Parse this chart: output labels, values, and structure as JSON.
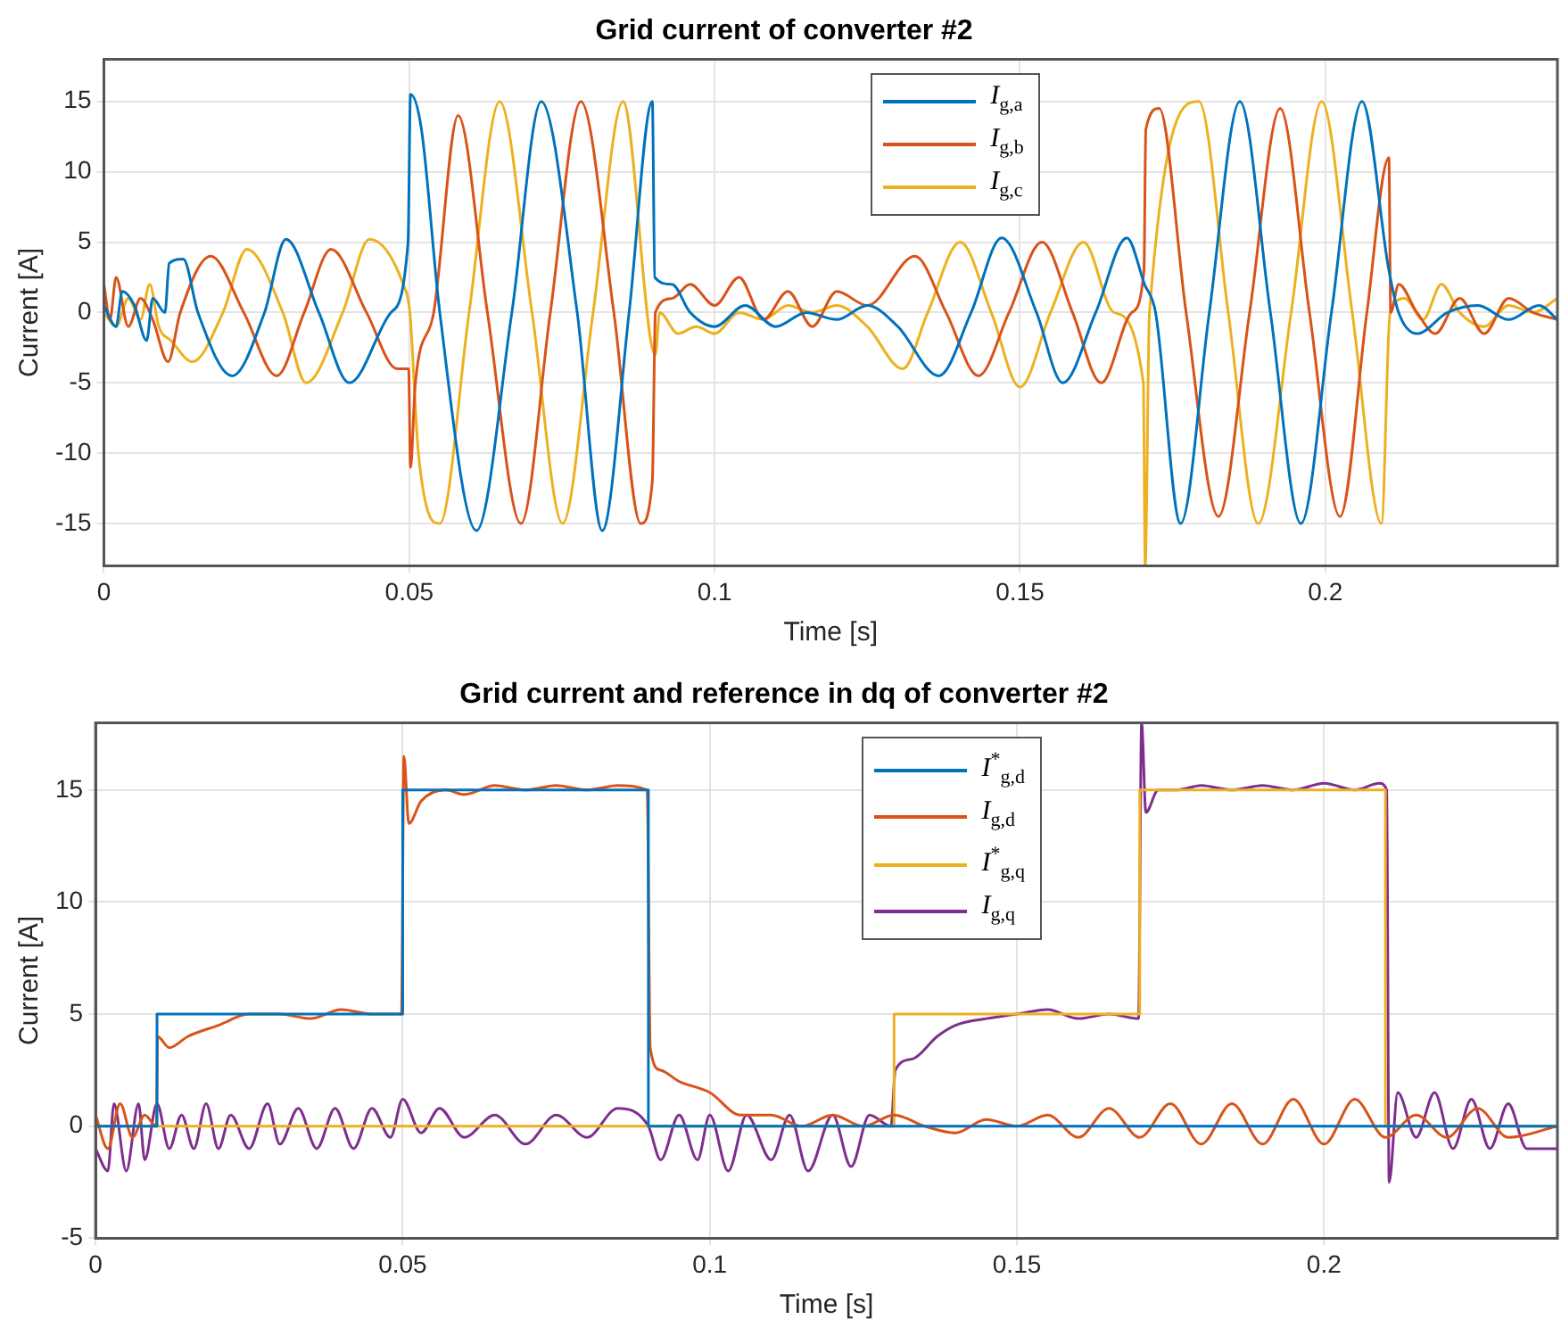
{
  "chart_data": [
    {
      "type": "line",
      "title": "Grid current of converter #2",
      "xlabel": "Time [s]",
      "ylabel": "Current [A]",
      "xlim": [
        0,
        0.238
      ],
      "xticks": [
        0,
        0.05,
        0.1,
        0.15,
        0.2
      ],
      "ylim": [
        -18,
        18
      ],
      "yticks": [
        -15,
        -10,
        -5,
        0,
        5,
        10,
        15
      ],
      "grid": true,
      "legend": "top",
      "series": [
        {
          "name": "I$_{g,a}$",
          "color": "#0072bd",
          "x": [
            0,
            0.002,
            0.003,
            0.005,
            0.007,
            0.008,
            0.01,
            0.0107,
            0.013,
            0.0154,
            0.021,
            0.0263,
            0.0298,
            0.0352,
            0.0402,
            0.047,
            0.0498,
            0.0502,
            0.052,
            0.055,
            0.061,
            0.0668,
            0.0716,
            0.0775,
            0.0816,
            0.086,
            0.0898,
            0.0902,
            0.093,
            0.096,
            0.1,
            0.105,
            0.11,
            0.115,
            0.12,
            0.125,
            0.13,
            0.1367,
            0.142,
            0.147,
            0.1527,
            0.157,
            0.1624,
            0.1675,
            0.1704,
            0.1722,
            0.1763,
            0.181,
            0.186,
            0.191,
            0.196,
            0.201,
            0.206,
            0.2104,
            0.212,
            0.215,
            0.22,
            0.225,
            0.23,
            0.235,
            0.238
          ],
          "values": [
            0.5,
            -1,
            1.5,
            0.5,
            -2,
            1,
            0,
            3.5,
            3.8,
            0,
            -4.5,
            0,
            5.2,
            0,
            -5,
            0,
            5,
            15.5,
            13,
            0,
            -15.5,
            0,
            15,
            0,
            -15.5,
            0,
            15,
            2.5,
            2,
            0,
            -1,
            0.5,
            -1,
            0,
            -0.5,
            0.5,
            -1,
            -4.5,
            0,
            5.3,
            0,
            -5,
            0,
            5.3,
            2,
            0,
            -15,
            0,
            15,
            0,
            -15,
            0,
            15,
            3,
            0,
            -1.5,
            0,
            0.5,
            -0.5,
            0.5,
            -0.5
          ]
        },
        {
          "name": "I$_{g,b}$",
          "color": "#d95319",
          "x": [
            0,
            0.001,
            0.002,
            0.004,
            0.006,
            0.008,
            0.0105,
            0.0125,
            0.0175,
            0.0229,
            0.0283,
            0.0328,
            0.0372,
            0.043,
            0.048,
            0.0499,
            0.0502,
            0.051,
            0.054,
            0.058,
            0.0628,
            0.0683,
            0.0731,
            0.0781,
            0.0835,
            0.0879,
            0.0898,
            0.0903,
            0.093,
            0.096,
            0.1,
            0.104,
            0.108,
            0.112,
            0.116,
            0.12,
            0.125,
            0.1328,
            0.1379,
            0.1432,
            0.1482,
            0.1536,
            0.1586,
            0.1633,
            0.1683,
            0.1703,
            0.1706,
            0.1728,
            0.1772,
            0.1825,
            0.1876,
            0.1926,
            0.1974,
            0.2024,
            0.2068,
            0.2104,
            0.2107,
            0.212,
            0.215,
            0.218,
            0.222,
            0.226,
            0.23,
            0.234,
            0.238
          ],
          "values": [
            2,
            -0.5,
            2.5,
            -1,
            1,
            -0.5,
            -3.5,
            0,
            4,
            0,
            -4.5,
            0,
            4.5,
            0,
            -4,
            -4,
            -11,
            -5,
            0,
            14,
            0,
            -15,
            0,
            15,
            0,
            -15,
            -12,
            0,
            1,
            2,
            0.5,
            2.5,
            -0.5,
            1.5,
            -1,
            1.5,
            0.5,
            4,
            0,
            -4.5,
            0,
            5,
            0,
            -5,
            0,
            3,
            13,
            14.5,
            0,
            -14.5,
            0,
            14.5,
            0,
            -14.5,
            0,
            11,
            0,
            2,
            0,
            -1.5,
            1,
            -1.5,
            1,
            0,
            -0.5
          ]
        },
        {
          "name": "I$_{g,c}$",
          "color": "#edb120",
          "x": [
            0,
            0.002,
            0.004,
            0.006,
            0.0075,
            0.009,
            0.011,
            0.0145,
            0.0195,
            0.0234,
            0.0293,
            0.0331,
            0.0391,
            0.0435,
            0.049,
            0.0501,
            0.0515,
            0.055,
            0.0598,
            0.0648,
            0.0701,
            0.0751,
            0.0801,
            0.085,
            0.0903,
            0.091,
            0.094,
            0.097,
            0.1,
            0.104,
            0.108,
            0.112,
            0.116,
            0.12,
            0.125,
            0.1308,
            0.1349,
            0.1402,
            0.1453,
            0.15,
            0.155,
            0.1604,
            0.1654,
            0.1702,
            0.1705,
            0.1712,
            0.1793,
            0.1841,
            0.189,
            0.1944,
            0.1994,
            0.2044,
            0.2092,
            0.2106,
            0.213,
            0.216,
            0.219,
            0.222,
            0.226,
            0.23,
            0.234,
            0.238
          ],
          "values": [
            0,
            -1,
            1,
            -0.5,
            2,
            -1,
            -2,
            -3.5,
            0,
            4.5,
            0,
            -5,
            0,
            5.2,
            2,
            0,
            -10,
            -15,
            0,
            15,
            0,
            -15,
            0,
            15,
            -3,
            0,
            -1.5,
            -1,
            -1.5,
            0,
            -0.5,
            0.5,
            0,
            0.5,
            -1,
            -4,
            0,
            5,
            0,
            -5.3,
            0,
            5,
            0,
            -5,
            -18,
            0,
            15,
            0,
            -15,
            0,
            15,
            0,
            -15,
            0,
            1,
            -0.5,
            2,
            0,
            -1,
            0.5,
            0,
            1
          ]
        }
      ]
    },
    {
      "type": "line",
      "title": "Grid current and reference in dq of converter #2",
      "xlabel": "Time [s]",
      "ylabel": "Current [A]",
      "xlim": [
        0,
        0.238
      ],
      "xticks": [
        0,
        0.05,
        0.1,
        0.15,
        0.2
      ],
      "ylim": [
        -5,
        18
      ],
      "yticks": [
        -5,
        0,
        5,
        10,
        15
      ],
      "grid": true,
      "legend": "top",
      "series": [
        {
          "name": "I$^{*}$$_{g,d}$",
          "type": "step",
          "color": "#0072bd",
          "x": [
            0,
            0.01,
            0.05,
            0.09,
            0.238
          ],
          "values": [
            0,
            5,
            15,
            0,
            0
          ]
        },
        {
          "name": "I$_{g,d}$",
          "color": "#d95319",
          "x": [
            0,
            0.002,
            0.004,
            0.006,
            0.008,
            0.0099,
            0.0101,
            0.012,
            0.015,
            0.02,
            0.025,
            0.03,
            0.035,
            0.04,
            0.045,
            0.0498,
            0.0502,
            0.051,
            0.053,
            0.057,
            0.06,
            0.065,
            0.07,
            0.075,
            0.08,
            0.085,
            0.0898,
            0.0903,
            0.092,
            0.095,
            0.1,
            0.105,
            0.11,
            0.115,
            0.12,
            0.125,
            0.13,
            0.135,
            0.14,
            0.145,
            0.15,
            0.155,
            0.16,
            0.165,
            0.17,
            0.175,
            0.18,
            0.185,
            0.19,
            0.195,
            0.2,
            0.205,
            0.21,
            0.215,
            0.22,
            0.225,
            0.23,
            0.238
          ],
          "values": [
            0.5,
            -1,
            1,
            -0.5,
            0.5,
            0,
            4,
            3.5,
            4,
            4.5,
            5,
            5,
            4.8,
            5.2,
            5,
            5,
            16.5,
            13.5,
            14.5,
            15,
            14.8,
            15.2,
            15,
            15.2,
            15,
            15.2,
            15,
            3.5,
            2.5,
            2,
            1.5,
            0.5,
            0.5,
            0,
            0.5,
            0,
            0.5,
            0,
            -0.3,
            0.3,
            0,
            0.5,
            -0.5,
            0.8,
            -0.5,
            1,
            -0.8,
            1,
            -0.8,
            1.2,
            -0.8,
            1.2,
            -0.5,
            0.5,
            -0.5,
            0.8,
            -0.5,
            0
          ]
        },
        {
          "name": "I$^{*}$$_{g,q}$",
          "type": "step",
          "color": "#edb120",
          "x": [
            0,
            0.13,
            0.17,
            0.21,
            0.238
          ],
          "values": [
            0,
            5,
            15,
            0,
            0
          ]
        },
        {
          "name": "I$_{g,q}$",
          "color": "#7e2f8e",
          "x": [
            0,
            0.002,
            0.003,
            0.005,
            0.007,
            0.008,
            0.01,
            0.012,
            0.014,
            0.016,
            0.018,
            0.02,
            0.022,
            0.025,
            0.028,
            0.03,
            0.033,
            0.036,
            0.039,
            0.042,
            0.045,
            0.048,
            0.05,
            0.053,
            0.056,
            0.06,
            0.065,
            0.07,
            0.075,
            0.08,
            0.085,
            0.09,
            0.092,
            0.095,
            0.098,
            0.1,
            0.103,
            0.106,
            0.11,
            0.113,
            0.116,
            0.12,
            0.123,
            0.126,
            0.1295,
            0.1302,
            0.133,
            0.137,
            0.14,
            0.145,
            0.15,
            0.155,
            0.16,
            0.165,
            0.1698,
            0.1703,
            0.171,
            0.173,
            0.176,
            0.18,
            0.185,
            0.19,
            0.195,
            0.2,
            0.205,
            0.209,
            0.2102,
            0.2106,
            0.212,
            0.215,
            0.218,
            0.221,
            0.224,
            0.227,
            0.23,
            0.233,
            0.238
          ],
          "values": [
            -1,
            -2,
            1,
            -2,
            1,
            -1.5,
            1,
            -1,
            0.5,
            -1,
            1,
            -1,
            0.5,
            -1,
            1,
            -0.8,
            0.8,
            -1,
            0.8,
            -1,
            0.8,
            -0.5,
            1.2,
            -0.3,
            0.8,
            -0.5,
            0.5,
            -0.8,
            0.5,
            -0.5,
            0.8,
            0,
            -1.5,
            0.5,
            -1.5,
            0.5,
            -2,
            0.5,
            -1.5,
            0.5,
            -2,
            0.5,
            -1.8,
            0.5,
            0,
            2.5,
            3,
            4,
            4.5,
            4.8,
            5,
            5.2,
            4.8,
            5,
            4.8,
            18,
            14,
            15,
            15,
            15.2,
            15,
            15.2,
            15,
            15.3,
            15,
            15.3,
            15,
            -2.5,
            1.5,
            -0.5,
            1.5,
            -1,
            1.2,
            -1,
            1,
            -1,
            -1
          ]
        }
      ]
    }
  ]
}
